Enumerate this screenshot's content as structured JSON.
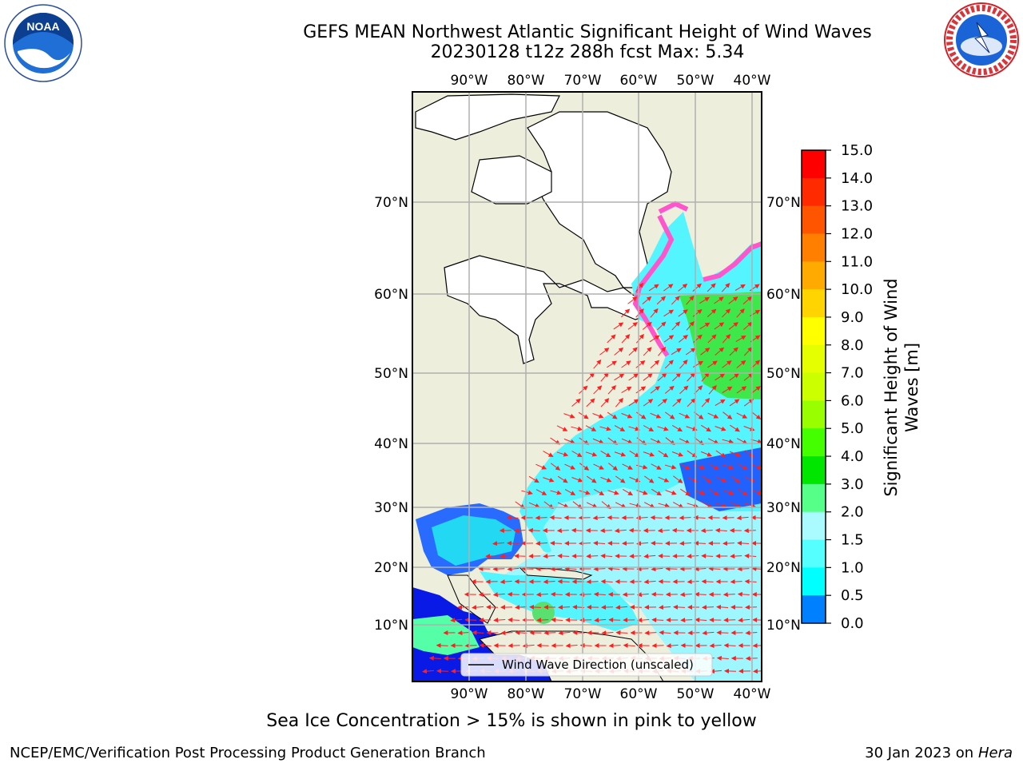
{
  "title": {
    "line1": "GEFS MEAN Northwest Atlantic Significant Height of Wind Waves",
    "line2": "20230128 t12z 288h fcst   Max: 5.34"
  },
  "logos": {
    "left": "NOAA",
    "right": "NATIONAL WEATHER SERVICE"
  },
  "map": {
    "lon_labels": [
      "90°W",
      "80°W",
      "70°W",
      "60°W",
      "50°W",
      "40°W"
    ],
    "lat_labels": [
      "10°N",
      "20°N",
      "30°N",
      "40°N",
      "50°N",
      "60°N",
      "70°N"
    ],
    "legend_label": "Wind Wave Direction (unscaled)",
    "colors": {
      "land": "#eeeedd",
      "ocean_low": "#1a5cff",
      "ocean_mid": "#00e5ff",
      "ocean_high": "#a9fbff",
      "green": "#3fe84a",
      "ice": "#ff55cc",
      "arrow": "#ff1f1f"
    }
  },
  "colorbar": {
    "label": "Significant Height of Wind Waves [m]",
    "label_line1": "Significant Height of Wind",
    "label_line2": "Waves [m]",
    "ticks": [
      "15.0",
      "14.0",
      "13.0",
      "12.0",
      "11.0",
      "10.0",
      "9.0",
      "8.0",
      "7.0",
      "6.0",
      "5.0",
      "4.0",
      "3.0",
      "2.0",
      "1.5",
      "1.0",
      "0.5",
      "0.0"
    ],
    "colors": [
      "#ff0000",
      "#ff2a00",
      "#ff5500",
      "#ff7f00",
      "#ffaa00",
      "#ffd400",
      "#ffff00",
      "#e6ff00",
      "#ccff00",
      "#99ff00",
      "#44ff00",
      "#00e600",
      "#55ff88",
      "#a9fbff",
      "#55ffff",
      "#00ffff",
      "#0080ff",
      "#0000ff"
    ]
  },
  "footer": {
    "note": "Sea Ice Concentration > 15% is shown in pink to yellow",
    "credit_left": "NCEP/EMC/Verification Post Processing Product Generation Branch",
    "credit_date": "30 Jan 2023 on ",
    "credit_machine": "Hera"
  }
}
